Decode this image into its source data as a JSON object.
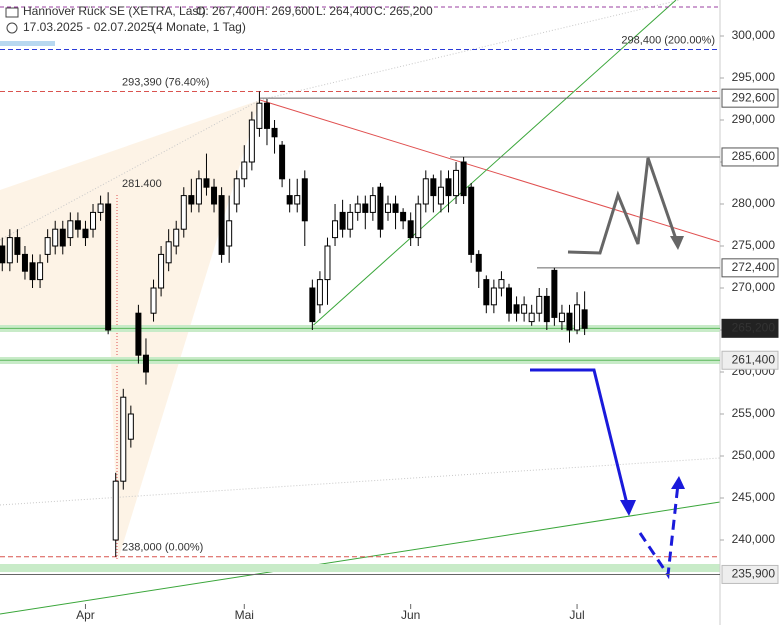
{
  "chart_data": {
    "type": "candlestick",
    "title": "Hannover Rück SE (XETRA, Last)",
    "ohlc_labels": [
      "O: 267,400",
      "H: 269,600",
      "L: 264,400",
      "C: 265,200"
    ],
    "subtitle": "17.03.2025 - 02.07.2025",
    "period": "(4 Monate, 1 Tag)",
    "xlim": [
      -0.3,
      94.9
    ],
    "xticks": [
      {
        "value": 11,
        "label": "Apr"
      },
      {
        "value": 32,
        "label": "Mai"
      },
      {
        "value": 54,
        "label": "Jun"
      },
      {
        "value": 76,
        "label": "Jul"
      }
    ],
    "ylim": [
      229881,
      304286
    ],
    "yticks": [
      {
        "value": 300000,
        "label": "300,000"
      },
      {
        "value": 295000,
        "label": "295,000"
      },
      {
        "value": 290000,
        "label": "290,000"
      },
      {
        "value": 285000,
        "label": "285,000"
      },
      {
        "value": 280000,
        "label": "280,000"
      },
      {
        "value": 275000,
        "label": "275,000"
      },
      {
        "value": 270000,
        "label": "270,000"
      },
      {
        "value": 265000,
        "label": "265,000"
      },
      {
        "value": 260000,
        "label": "260,000"
      },
      {
        "value": 255000,
        "label": "255,000"
      },
      {
        "value": 250000,
        "label": "250,000"
      },
      {
        "value": 245000,
        "label": "245,000"
      },
      {
        "value": 240000,
        "label": "240,000"
      }
    ],
    "open": [
      275000,
      273000,
      276000,
      274000,
      273000,
      271000,
      274000,
      275000,
      277000,
      276000,
      278000,
      277000,
      277000,
      279000,
      280000,
      240000,
      247000,
      252000,
      267000,
      262000,
      267000,
      270000,
      273000,
      275000,
      277000,
      281000,
      280000,
      283000,
      282000,
      281000,
      275000,
      280000,
      283000,
      285000,
      289000,
      292000,
      289000,
      287000,
      281000,
      280000,
      283000,
      270000,
      268000,
      271000,
      276000,
      279000,
      277000,
      279000,
      280000,
      279000,
      282000,
      279000,
      280000,
      279000,
      278000,
      276000,
      280000,
      283000,
      280000,
      283000,
      281000,
      285000,
      282000,
      274000,
      271000,
      268000,
      270000,
      270000,
      268000,
      267000,
      266000,
      267000,
      269000,
      272100,
      266000,
      267000,
      265000,
      267400
    ],
    "high": [
      276000,
      277000,
      277000,
      275000,
      274000,
      274000,
      277000,
      278000,
      278000,
      279000,
      279000,
      278000,
      280000,
      281000,
      281400,
      248000,
      258000,
      256000,
      268000,
      264000,
      271000,
      275000,
      277000,
      278000,
      282000,
      283000,
      284000,
      286000,
      283000,
      282000,
      281000,
      284000,
      287000,
      291000,
      293400,
      292500,
      290000,
      287500,
      283000,
      283000,
      284000,
      271000,
      272000,
      276000,
      280000,
      280500,
      280000,
      281000,
      281000,
      282000,
      282500,
      281000,
      281000,
      279500,
      279000,
      281000,
      284000,
      283500,
      284000,
      284000,
      285000,
      285600,
      282500,
      274500,
      271500,
      271000,
      272000,
      270500,
      269000,
      269000,
      268000,
      270000,
      270000,
      272400,
      268000,
      268000,
      269500,
      269600
    ],
    "low": [
      272000,
      272000,
      273000,
      271000,
      270000,
      270000,
      273000,
      274000,
      274000,
      275000,
      276000,
      275000,
      276000,
      278000,
      264500,
      238000,
      246000,
      251000,
      261000,
      258500,
      266000,
      269000,
      272000,
      274000,
      276000,
      279000,
      279000,
      281000,
      279000,
      273000,
      273000,
      279000,
      282000,
      284000,
      288000,
      287000,
      286000,
      282000,
      279000,
      279000,
      275000,
      265000,
      267000,
      268000,
      275000,
      276000,
      276000,
      278000,
      277000,
      278000,
      276000,
      278000,
      277000,
      277000,
      275000,
      275000,
      279000,
      279000,
      279000,
      279000,
      280000,
      280000,
      273000,
      270000,
      267000,
      267000,
      269000,
      266000,
      266000,
      266000,
      265500,
      266000,
      265000,
      265500,
      265000,
      263500,
      264500,
      264400
    ],
    "close": [
      273000,
      276000,
      274000,
      272000,
      271000,
      273000,
      276000,
      277000,
      275000,
      278000,
      277000,
      276000,
      279000,
      280000,
      265000,
      247000,
      257000,
      255000,
      262000,
      260000,
      270000,
      274000,
      275500,
      277000,
      281000,
      280000,
      283000,
      282000,
      280000,
      274000,
      278000,
      283000,
      285000,
      290000,
      292000,
      289000,
      288000,
      283000,
      280000,
      281000,
      278000,
      266000,
      271000,
      275000,
      278000,
      277000,
      279000,
      280000,
      279000,
      281000,
      277000,
      280000,
      279000,
      278000,
      276000,
      280000,
      283000,
      281000,
      282000,
      281000,
      284000,
      281000,
      274000,
      272000,
      268000,
      270000,
      271000,
      267000,
      267000,
      268000,
      267000,
      269000,
      266000,
      266500,
      267000,
      265000,
      268000,
      265200
    ],
    "levels": [
      {
        "value": 292600,
        "label": "292,600"
      },
      {
        "value": 285600,
        "label": "285,600"
      },
      {
        "value": 272400,
        "label": "272,400"
      },
      {
        "value": 265200,
        "label": "265,200"
      },
      {
        "value": 261400,
        "label": "261,400"
      },
      {
        "value": 235900,
        "label": "235,900"
      }
    ],
    "fib_levels": [
      {
        "value": 298400,
        "label": "298,400 (200.00%)",
        "color": "#2a3ad8"
      },
      {
        "value": 293390,
        "label": "293,390 (76.40%)",
        "color": "#d9534f"
      },
      {
        "value": 238000,
        "label": "238,000 (0.00%)",
        "color": "#d9534f"
      }
    ],
    "high_label": {
      "value": 281400,
      "label": "281.400"
    }
  }
}
